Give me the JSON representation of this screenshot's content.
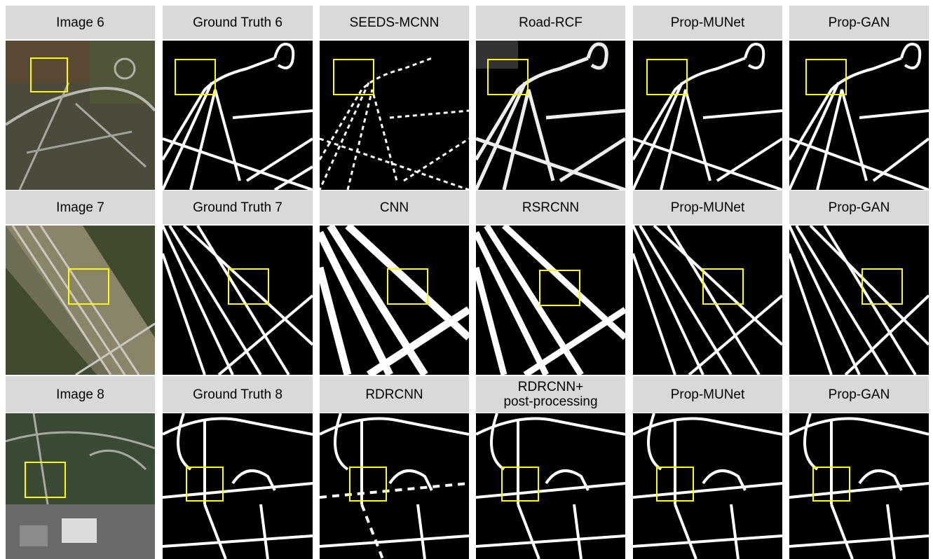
{
  "rows": [
    {
      "labels": [
        "Image 6",
        "Ground Truth 6",
        "SEEDS-MCNN",
        "Road-RCF",
        "Prop-MUNet",
        "Prop-GAN"
      ],
      "panel_kinds": [
        "aerial-suburban",
        "road-mask-suburban",
        "road-mask-fragmented",
        "road-mask-blurry",
        "road-mask-suburban",
        "road-mask-suburban"
      ]
    },
    {
      "labels": [
        "Image 7",
        "Ground Truth 7",
        "CNN",
        "RSRCNN",
        "Prop-MUNet",
        "Prop-GAN"
      ],
      "panel_kinds": [
        "aerial-highway",
        "road-mask-highway",
        "road-mask-thick",
        "road-mask-thick",
        "road-mask-highway",
        "road-mask-highway"
      ]
    },
    {
      "labels": [
        "Image 8",
        "Ground Truth 8",
        "RDRCNN",
        "RDRCNN+\npost-processing",
        "Prop-MUNet",
        "Prop-GAN"
      ],
      "panel_kinds": [
        "aerial-residential",
        "road-mask-residential",
        "road-mask-residential",
        "road-mask-residential",
        "road-mask-residential",
        "road-mask-residential"
      ]
    }
  ],
  "colors": {
    "label_bg": "#d9d9d9",
    "mask_bg": "#000000",
    "road": "#ffffff",
    "highlight_box": "#ffff00"
  }
}
